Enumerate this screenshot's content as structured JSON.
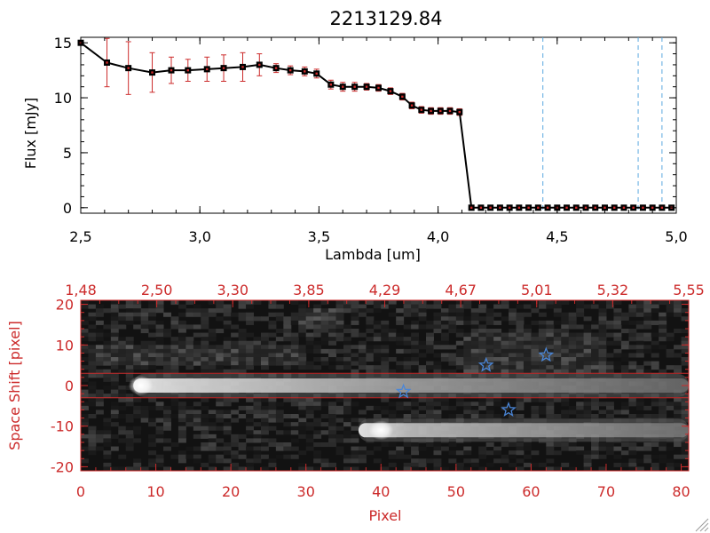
{
  "chart_data": [
    {
      "type": "line",
      "title": "2213129.84",
      "xlabel": "Lambda [um]",
      "ylabel": "Flux [mJy]",
      "xlim": [
        2.5,
        5.0
      ],
      "ylim": [
        -0.5,
        15.5
      ],
      "x_ticks": [
        "2.5",
        "3.0",
        "3.5",
        "4.0",
        "4.5",
        "5.0"
      ],
      "y_ticks": [
        "0",
        "5",
        "10",
        "15"
      ],
      "series": [
        {
          "x": [
            2.5,
            2.61,
            2.7,
            2.8,
            2.88,
            2.95,
            3.03,
            3.1,
            3.18,
            3.25,
            3.32,
            3.38,
            3.44,
            3.49,
            3.55,
            3.6,
            3.65,
            3.7,
            3.75,
            3.8,
            3.85,
            3.89,
            3.93,
            3.97,
            4.01,
            4.05,
            4.09,
            4.14,
            4.18,
            4.22,
            4.26,
            4.3,
            4.34,
            4.38,
            4.42,
            4.46,
            4.5,
            4.54,
            4.58,
            4.62,
            4.66,
            4.7,
            4.74,
            4.78,
            4.82,
            4.86,
            4.9,
            4.94,
            4.98
          ],
          "y": [
            15.0,
            13.2,
            12.7,
            12.3,
            12.5,
            12.5,
            12.6,
            12.7,
            12.8,
            13.0,
            12.7,
            12.5,
            12.4,
            12.2,
            11.2,
            11.0,
            11.0,
            11.0,
            10.9,
            10.6,
            10.1,
            9.3,
            8.9,
            8.8,
            8.8,
            8.8,
            8.7,
            0.0,
            0.0,
            0.0,
            0.0,
            0.0,
            0.0,
            0.0,
            0.0,
            0.0,
            0.0,
            0.0,
            0.0,
            0.0,
            0.0,
            0.0,
            0.0,
            0.0,
            0.0,
            0.0,
            0.0,
            0.0,
            0.0
          ],
          "yerr": [
            0.2,
            2.2,
            2.4,
            1.8,
            1.2,
            1.0,
            1.1,
            1.2,
            1.3,
            1.0,
            0.4,
            0.4,
            0.4,
            0.4,
            0.4,
            0.4,
            0.4,
            0.3,
            0.3,
            0.3,
            0.3,
            0.3,
            0.3,
            0.3,
            0.3,
            0.3,
            0.3,
            0.1,
            0.1,
            0.1,
            0.1,
            0.1,
            0.1,
            0.1,
            0.1,
            0.1,
            0.1,
            0.1,
            0.1,
            0.1,
            0.1,
            0.1,
            0.1,
            0.1,
            0.1,
            0.1,
            0.1,
            0.1,
            0.1
          ]
        }
      ],
      "vlines": [
        4.44,
        4.84,
        4.94
      ],
      "vline_color": "#5aa8e0",
      "line_color": "#000000",
      "marker_color": "#000000",
      "errorbar_color": "#cc2b2b",
      "grid": false
    },
    {
      "type": "heatmap",
      "xlabel": "Pixel",
      "ylabel": "Space Shift [pixel]",
      "xlim": [
        0,
        81
      ],
      "ylim": [
        -21,
        21
      ],
      "x_ticks": [
        "0",
        "10",
        "20",
        "30",
        "40",
        "50",
        "60",
        "70",
        "80"
      ],
      "y_ticks": [
        "-20",
        "-10",
        "0",
        "10",
        "20"
      ],
      "top_axis_ticks": [
        "1.48",
        "2.50",
        "3.30",
        "3.85",
        "4.29",
        "4.67",
        "5.01",
        "5.32",
        "5.55"
      ],
      "extraction_lines": [
        3,
        -3
      ],
      "extraction_line_color": "#cc2b2b",
      "axis_color": "#cc2b2b",
      "stars": [
        {
          "x": 43,
          "y": -1.5
        },
        {
          "x": 54,
          "y": 5
        },
        {
          "x": 57,
          "y": -6
        },
        {
          "x": 62,
          "y": 7.5
        }
      ],
      "star_color": "#4a86d8",
      "bright_sources": [
        {
          "x_start": 7,
          "x_end": 81,
          "y": 0,
          "peak_x": 8
        },
        {
          "x_start": 37,
          "x_end": 81,
          "y": -11,
          "peak_x": 40
        }
      ]
    }
  ]
}
